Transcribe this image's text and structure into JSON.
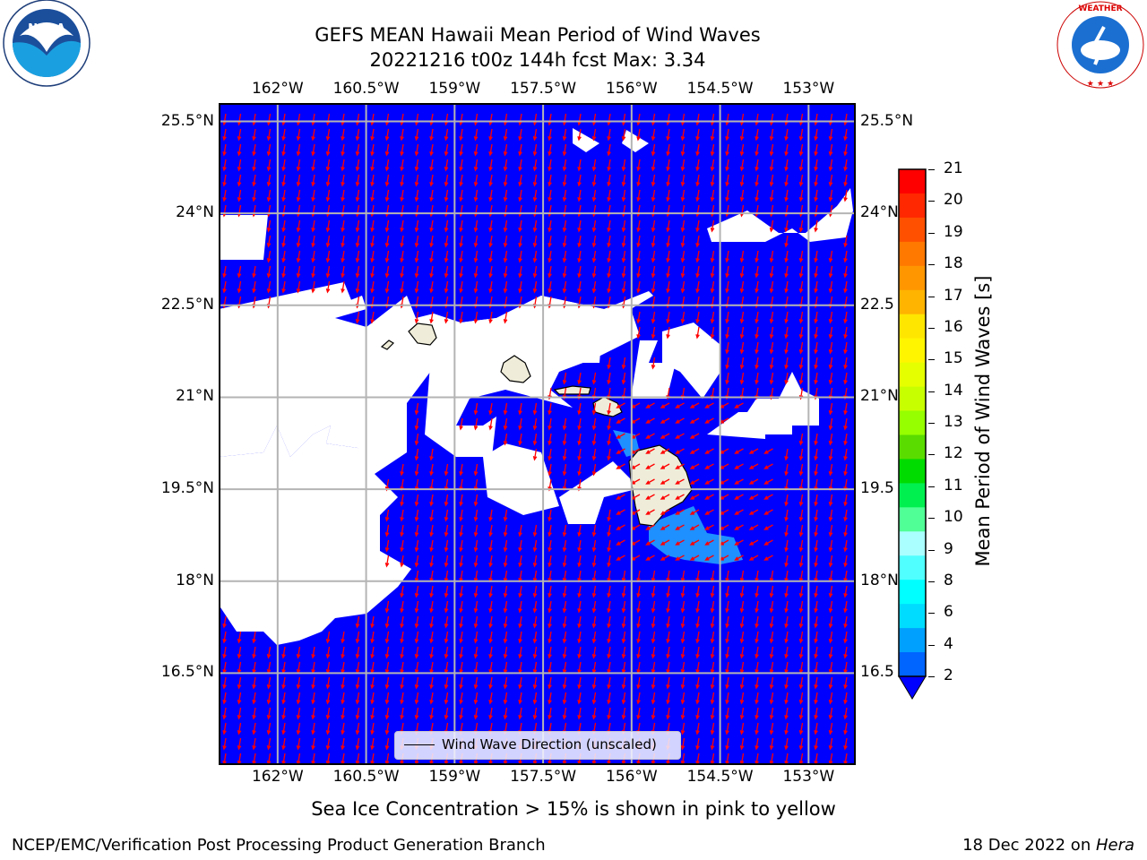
{
  "title_line1": "GEFS MEAN Hawaii Mean Period of Wind Waves",
  "title_line2": "20221216 t00z 144h fcst   Max: 3.34",
  "logos": {
    "left": {
      "name": "noaa-logo",
      "text": "NOAA",
      "ring_text": "NATIONAL OCEANIC AND ATMOSPHERIC ADMINISTRATION · U.S. DEPARTMENT OF COMMERCE"
    },
    "right": {
      "name": "nws-logo",
      "ring_text": "NATIONAL WEATHER SERVICE"
    }
  },
  "map": {
    "lon_ticks": [
      "162°W",
      "160.5°W",
      "159°W",
      "157.5°W",
      "156°W",
      "154.5°W",
      "153°W"
    ],
    "lon_values": [
      -162,
      -160.5,
      -159,
      -157.5,
      -156,
      -154.5,
      -153
    ],
    "lat_ticks": [
      "25.5°N",
      "24°N",
      "22.5°N",
      "21°N",
      "19.5°N",
      "18°N",
      "16.5°N"
    ],
    "lat_ticks_right": [
      "25.5°N",
      "24°N",
      "22.5",
      "21°N",
      "19.5",
      "18°N",
      "16.5"
    ],
    "lat_values": [
      25.5,
      24,
      22.5,
      21,
      19.5,
      18,
      16.5
    ],
    "lon_range": [
      -163,
      -152.2
    ],
    "lat_range": [
      15,
      25.8
    ],
    "grid": true,
    "ocean_color": "#0000ff",
    "land_color": "#efedd9",
    "arrow_color": "#ff0000",
    "arrow_direction": "mostly southward; southwestward near Big Island"
  },
  "legend_label": "Wind Wave Direction (unscaled)",
  "colorbar": {
    "label": "Mean Period of Wind Waves [s]",
    "ticks": [
      "21",
      "20",
      "19",
      "18",
      "17",
      "16",
      "15",
      "14",
      "13",
      "12",
      "11",
      "10",
      "9",
      "8",
      "6",
      "4",
      "2"
    ],
    "colors": [
      "#ff0000",
      "#ff2800",
      "#ff5000",
      "#ff7800",
      "#ff9600",
      "#ffb400",
      "#ffe600",
      "#fff500",
      "#e6ff00",
      "#c8ff00",
      "#96ff00",
      "#5adc00",
      "#00dc00",
      "#00f050",
      "#50ff96",
      "#aaffff",
      "#50ffff",
      "#00ffff",
      "#00dcff",
      "#00a0ff",
      "#0064ff"
    ],
    "extend_color": "#0000ff"
  },
  "subtitle": "Sea Ice Concentration > 15% is shown in pink to yellow",
  "footer_left": "NCEP/EMC/Verification Post Processing Product Generation Branch",
  "footer_right_prefix": "18 Dec 2022 on ",
  "footer_right_host": "Hera"
}
